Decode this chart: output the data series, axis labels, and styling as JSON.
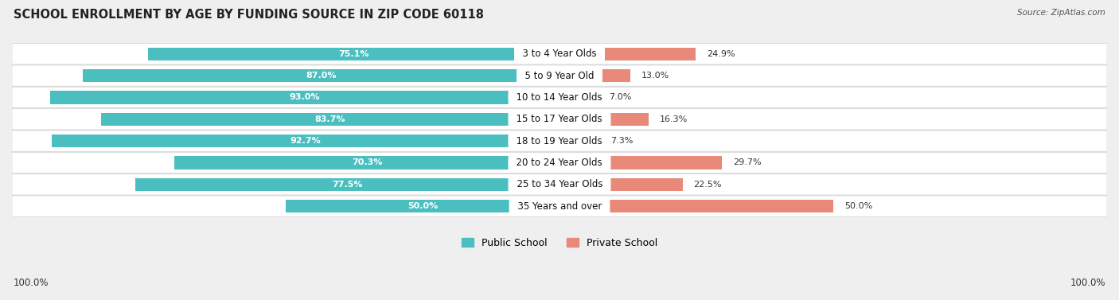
{
  "title": "SCHOOL ENROLLMENT BY AGE BY FUNDING SOURCE IN ZIP CODE 60118",
  "source": "Source: ZipAtlas.com",
  "categories": [
    "3 to 4 Year Olds",
    "5 to 9 Year Old",
    "10 to 14 Year Olds",
    "15 to 17 Year Olds",
    "18 to 19 Year Olds",
    "20 to 24 Year Olds",
    "25 to 34 Year Olds",
    "35 Years and over"
  ],
  "public_values": [
    75.1,
    87.0,
    93.0,
    83.7,
    92.7,
    70.3,
    77.5,
    50.0
  ],
  "private_values": [
    24.9,
    13.0,
    7.0,
    16.3,
    7.3,
    29.7,
    22.5,
    50.0
  ],
  "public_color": "#4bbfbf",
  "private_color": "#e8897a",
  "bg_color": "#efefef",
  "row_bg_color": "#ffffff",
  "title_fontsize": 10.5,
  "label_fontsize": 8.5,
  "value_fontsize": 8.0,
  "legend_fontsize": 9,
  "axis_label_left": "100.0%",
  "axis_label_right": "100.0%"
}
